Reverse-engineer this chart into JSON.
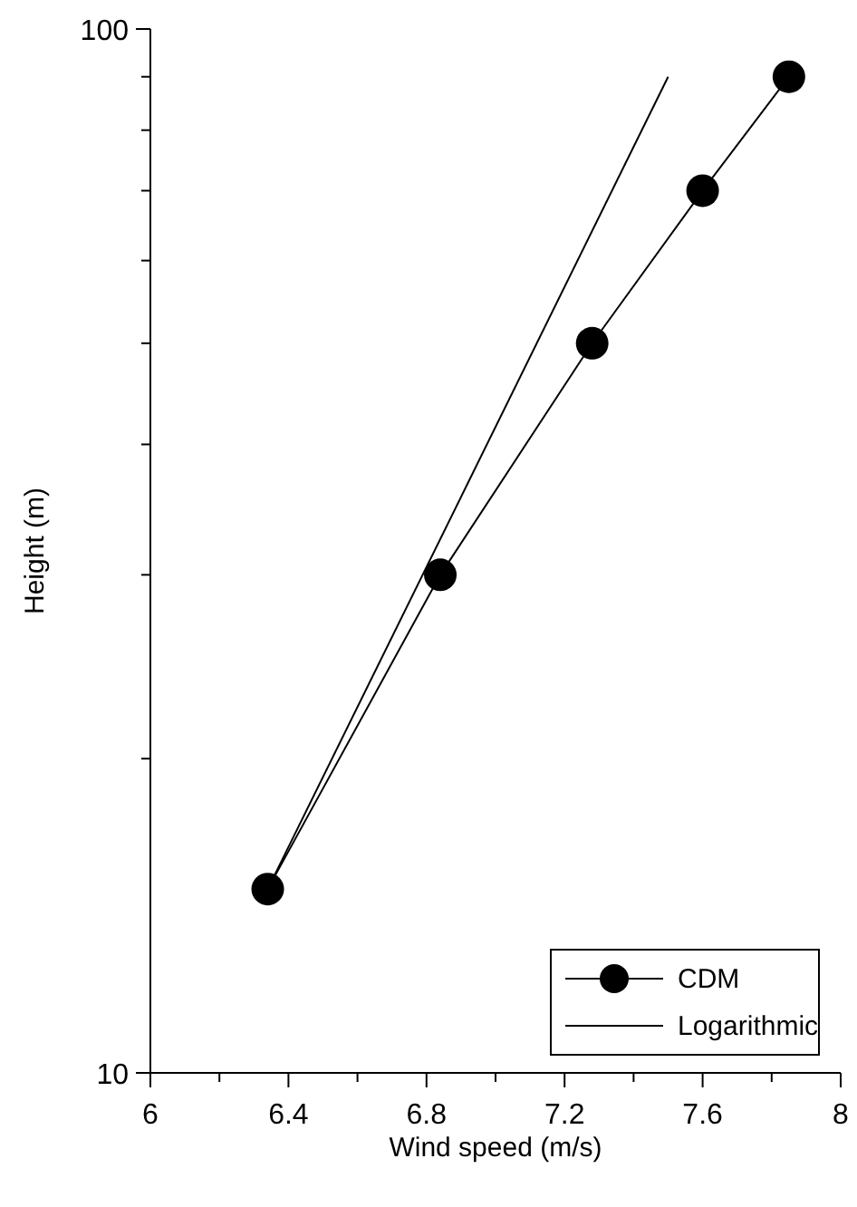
{
  "chart_data": {
    "type": "line",
    "xlabel": "Wind speed (m/s)",
    "ylabel": "Height (m)",
    "log": "y",
    "xlim": [
      6,
      8
    ],
    "ylim": [
      10,
      100
    ],
    "xticks": [
      6,
      {
        "value": 6.2,
        "label": null
      },
      6.4,
      {
        "value": 6.6,
        "label": null
      },
      6.8,
      {
        "value": 7,
        "label": null
      },
      7.2,
      {
        "value": 7.4,
        "label": null
      },
      7.6,
      {
        "value": 7.8,
        "label": null
      },
      8
    ],
    "yticks": [
      10,
      {
        "value": 20,
        "label": null
      },
      {
        "value": 30,
        "label": null
      },
      {
        "value": 40,
        "label": null
      },
      {
        "value": 50,
        "label": null
      },
      {
        "value": 60,
        "label": null
      },
      {
        "value": 70,
        "label": null
      },
      {
        "value": 80,
        "label": null
      },
      {
        "value": 90,
        "label": null
      },
      100
    ],
    "legend": "bottom right",
    "grid": false,
    "series": [
      {
        "name": "CDM",
        "color": "#000000",
        "marker": "circle",
        "x": [
          6.34,
          6.84,
          7.28,
          7.6,
          7.85
        ],
        "values": [
          15,
          30,
          50,
          70,
          90
        ]
      },
      {
        "name": "Logarithmic",
        "color": "#000000",
        "marker": "none",
        "x": [
          6.34,
          7.5
        ],
        "values": [
          15,
          90
        ]
      }
    ]
  }
}
